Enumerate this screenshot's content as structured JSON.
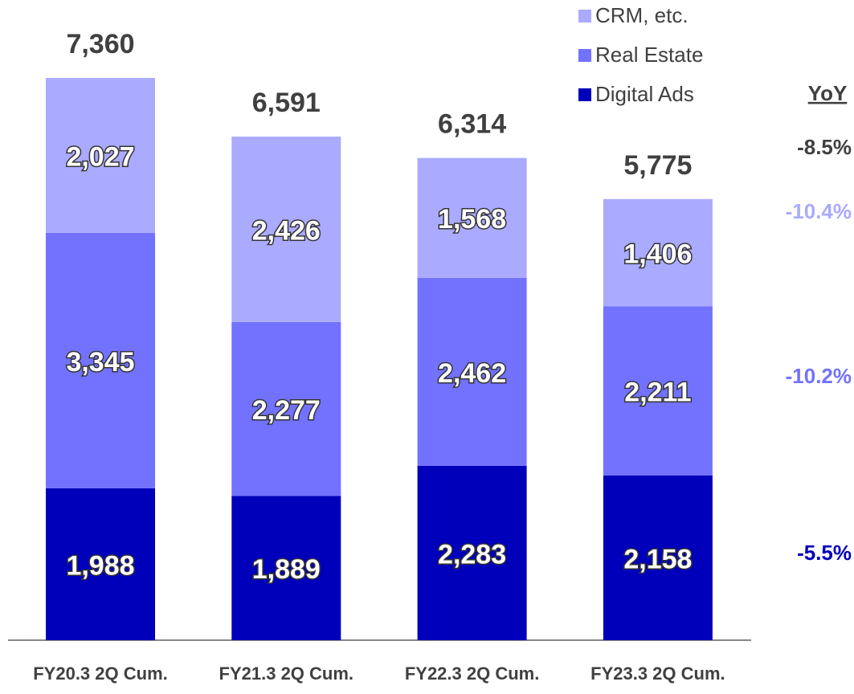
{
  "chart_data": {
    "type": "stacked-bar",
    "categories": [
      "FY20.3 2Q Cum.",
      "FY21.3 2Q Cum.",
      "FY22.3 2Q Cum.",
      "FY23.3 2Q Cum."
    ],
    "series": [
      {
        "name": "Digital Ads",
        "color": "#0000bb",
        "values": [
          1988,
          1889,
          2283,
          2158
        ],
        "value_labels": [
          "1,988",
          "1,889",
          "2,283",
          "2,158"
        ]
      },
      {
        "name": "Real Estate",
        "color": "#7272ff",
        "values": [
          3345,
          2277,
          2462,
          2211
        ],
        "value_labels": [
          "3,345",
          "2,277",
          "2,462",
          "2,211"
        ]
      },
      {
        "name": "CRM, etc.",
        "color": "#aaaaff",
        "values": [
          2027,
          2426,
          1568,
          1406
        ],
        "value_labels": [
          "2,027",
          "2,426",
          "1,568",
          "1,406"
        ]
      }
    ],
    "totals": [
      7360,
      6591,
      6314,
      5775
    ],
    "totals_labels": [
      "7,360",
      "6,591",
      "6,314",
      "5,775"
    ],
    "yoy_title": "YoY",
    "annotations": [
      {
        "text": "-8.5%",
        "color": "#404040"
      },
      {
        "text": "-10.4%",
        "color": "#aaaaff"
      },
      {
        "text": "-10.2%",
        "color": "#7272ff"
      },
      {
        "text": "-5.5%",
        "color": "#0000bb"
      }
    ]
  }
}
